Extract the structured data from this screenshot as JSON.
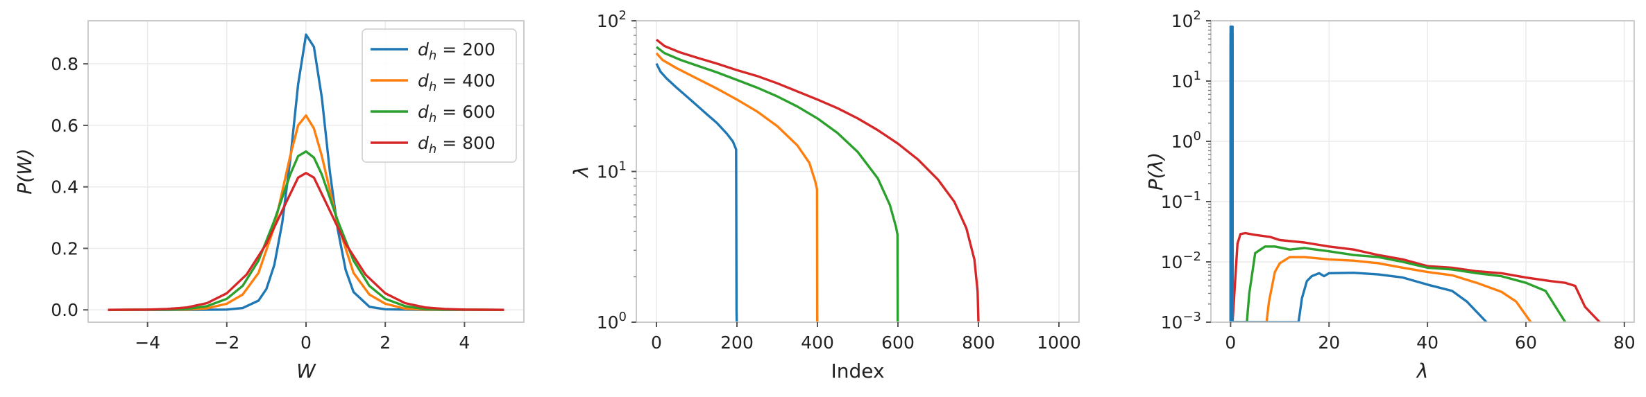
{
  "colors": {
    "d200": "#1f77b4",
    "d400": "#ff7f0e",
    "d600": "#2ca02c",
    "d800": "#d62728"
  },
  "chart_data": [
    {
      "type": "line",
      "xlabel": "W",
      "ylabel": "P(W)",
      "xlim": [
        -5.5,
        5.5
      ],
      "ylim": [
        -0.04,
        0.94
      ],
      "xticks": [
        -4,
        -2,
        0,
        2,
        4
      ],
      "xtick_labels": [
        "−4",
        "−2",
        "0",
        "2",
        "4"
      ],
      "yticks": [
        0.0,
        0.2,
        0.4,
        0.6,
        0.8
      ],
      "ytick_labels": [
        "0.0",
        "0.2",
        "0.4",
        "0.6",
        "0.8"
      ],
      "grid": true,
      "legend": {
        "placement": "top-right",
        "entries": [
          {
            "prefix": "d",
            "sub": "h",
            "suffix": " = 200",
            "color_key": "d200"
          },
          {
            "prefix": "d",
            "sub": "h",
            "suffix": " = 400",
            "color_key": "d400"
          },
          {
            "prefix": "d",
            "sub": "h",
            "suffix": " = 600",
            "color_key": "d600"
          },
          {
            "prefix": "d",
            "sub": "h",
            "suffix": " = 800",
            "color_key": "d800"
          }
        ]
      },
      "series": [
        {
          "color_key": "d200",
          "x": [
            -5,
            -3,
            -2,
            -1.6,
            -1.2,
            -1.0,
            -0.8,
            -0.6,
            -0.4,
            -0.2,
            0,
            0.2,
            0.4,
            0.6,
            0.8,
            1.0,
            1.2,
            1.6,
            2,
            3,
            5
          ],
          "y": [
            0,
            0,
            0.001,
            0.006,
            0.03,
            0.068,
            0.146,
            0.283,
            0.487,
            0.733,
            0.895,
            0.855,
            0.69,
            0.45,
            0.262,
            0.13,
            0.058,
            0.01,
            0.002,
            0,
            0
          ]
        },
        {
          "color_key": "d400",
          "x": [
            -5,
            -3,
            -2.5,
            -2,
            -1.6,
            -1.2,
            -0.8,
            -0.4,
            -0.2,
            0,
            0.2,
            0.4,
            0.8,
            1.2,
            1.6,
            2,
            2.5,
            3,
            5
          ],
          "y": [
            0,
            0.001,
            0.005,
            0.02,
            0.05,
            0.12,
            0.27,
            0.5,
            0.6,
            0.632,
            0.59,
            0.5,
            0.28,
            0.12,
            0.05,
            0.02,
            0.004,
            0.001,
            0
          ]
        },
        {
          "color_key": "d600",
          "x": [
            -5,
            -3.5,
            -3,
            -2.5,
            -2,
            -1.6,
            -1.2,
            -0.8,
            -0.4,
            -0.2,
            0,
            0.2,
            0.4,
            0.8,
            1.2,
            1.6,
            2,
            2.5,
            3,
            3.5,
            5
          ],
          "y": [
            0,
            0.001,
            0.003,
            0.012,
            0.036,
            0.078,
            0.16,
            0.29,
            0.44,
            0.5,
            0.515,
            0.495,
            0.44,
            0.29,
            0.16,
            0.078,
            0.036,
            0.012,
            0.003,
            0.001,
            0
          ]
        },
        {
          "color_key": "d800",
          "x": [
            -5,
            -4,
            -3.5,
            -3,
            -2.5,
            -2,
            -1.5,
            -1,
            -0.5,
            -0.2,
            0,
            0.2,
            0.5,
            1,
            1.5,
            2,
            2.5,
            3,
            3.5,
            4,
            5
          ],
          "y": [
            0,
            0.001,
            0.003,
            0.008,
            0.022,
            0.054,
            0.115,
            0.215,
            0.35,
            0.43,
            0.445,
            0.43,
            0.35,
            0.215,
            0.115,
            0.054,
            0.022,
            0.008,
            0.003,
            0.001,
            0
          ]
        }
      ]
    },
    {
      "type": "line",
      "xlabel": "Index",
      "ylabel": "λ",
      "yscale": "log",
      "xlim": [
        -50,
        1050
      ],
      "ylim": [
        1,
        100
      ],
      "xticks": [
        0,
        200,
        400,
        600,
        800,
        1000
      ],
      "xtick_labels": [
        "0",
        "200",
        "400",
        "600",
        "800",
        "1000"
      ],
      "yticks": [
        1,
        10,
        100
      ],
      "ytick_labels": [
        {
          "base": "10",
          "exp": "0"
        },
        {
          "base": "10",
          "exp": "1"
        },
        {
          "base": "10",
          "exp": "2"
        }
      ],
      "grid": true,
      "series": [
        {
          "color_key": "d200",
          "x": [
            0,
            10,
            25,
            50,
            75,
            100,
            125,
            150,
            175,
            190,
            198,
            199,
            199.5
          ],
          "y": [
            52,
            46,
            41.5,
            36,
            31.5,
            27.5,
            24,
            21,
            17.8,
            15.8,
            14,
            1.2,
            1
          ]
        },
        {
          "color_key": "d400",
          "x": [
            0,
            15,
            50,
            100,
            150,
            200,
            250,
            300,
            350,
            380,
            395,
            399,
            399.5
          ],
          "y": [
            61,
            55,
            48.5,
            41.5,
            35.5,
            30,
            25,
            20,
            14.9,
            11.4,
            8.5,
            7.6,
            1
          ]
        },
        {
          "color_key": "d600",
          "x": [
            0,
            20,
            60,
            100,
            150,
            200,
            250,
            300,
            350,
            400,
            450,
            500,
            550,
            580,
            595,
            599,
            599.5
          ],
          "y": [
            67,
            61,
            55,
            50.5,
            45.5,
            40.5,
            36,
            31.5,
            27,
            22.5,
            18,
            13.5,
            9,
            6,
            4.3,
            3.8,
            1
          ]
        },
        {
          "color_key": "d800",
          "x": [
            0,
            20,
            60,
            100,
            150,
            200,
            250,
            300,
            350,
            400,
            450,
            500,
            550,
            600,
            650,
            700,
            740,
            770,
            790,
            798,
            800
          ],
          "y": [
            75,
            68,
            61.5,
            57,
            52,
            47,
            43,
            38.5,
            34,
            30,
            26.3,
            22.5,
            18.8,
            15.3,
            12,
            8.8,
            6.3,
            4.2,
            2.6,
            1.6,
            1
          ]
        }
      ]
    },
    {
      "type": "line",
      "xlabel": "λ",
      "ylabel": "P(λ)",
      "yscale": "log",
      "xlim": [
        -4,
        82
      ],
      "ylim": [
        0.001,
        100
      ],
      "xticks": [
        0,
        20,
        40,
        60,
        80
      ],
      "xtick_labels": [
        "0",
        "20",
        "40",
        "60",
        "80"
      ],
      "yticks": [
        0.001,
        0.01,
        0.1,
        1,
        10,
        100
      ],
      "ytick_labels": [
        {
          "base": "10",
          "exp": "−3"
        },
        {
          "base": "10",
          "exp": "−2"
        },
        {
          "base": "10",
          "exp": "−1"
        },
        {
          "base": "10",
          "exp": "0"
        },
        {
          "base": "10",
          "exp": "1"
        },
        {
          "base": "10",
          "exp": "2"
        }
      ],
      "grid": true,
      "series": [
        {
          "color_key": "d800",
          "x": [
            0,
            0,
            0.4,
            0.4,
            1.4,
            2,
            3,
            5,
            8,
            10,
            15,
            20,
            25,
            30,
            35,
            40,
            45,
            50,
            55,
            60,
            65,
            68,
            70,
            72,
            75
          ],
          "y": [
            0.001,
            22,
            22,
            0.001,
            0.02,
            0.029,
            0.03,
            0.028,
            0.026,
            0.023,
            0.021,
            0.018,
            0.016,
            0.013,
            0.011,
            0.0085,
            0.008,
            0.007,
            0.0065,
            0.0055,
            0.0048,
            0.0045,
            0.004,
            0.0018,
            0.001
          ]
        },
        {
          "color_key": "d600",
          "x": [
            0,
            0,
            0.4,
            0.4,
            3.3,
            3.8,
            5,
            7,
            9,
            12,
            15,
            20,
            25,
            30,
            35,
            40,
            45,
            50,
            55,
            60,
            64,
            68
          ],
          "y": [
            0.001,
            40,
            40,
            0.001,
            0.001,
            0.003,
            0.014,
            0.018,
            0.018,
            0.016,
            0.017,
            0.015,
            0.013,
            0.012,
            0.01,
            0.008,
            0.0075,
            0.0065,
            0.0058,
            0.0045,
            0.0033,
            0.001
          ]
        },
        {
          "color_key": "d400",
          "x": [
            0,
            0,
            0.4,
            0.4,
            7.3,
            7.8,
            9,
            10,
            12,
            15,
            20,
            25,
            30,
            35,
            40,
            45,
            50,
            55,
            58,
            61
          ],
          "y": [
            0.001,
            60,
            60,
            0.001,
            0.001,
            0.0022,
            0.0068,
            0.0095,
            0.012,
            0.012,
            0.011,
            0.0105,
            0.0095,
            0.008,
            0.0068,
            0.006,
            0.0045,
            0.0032,
            0.0022,
            0.001
          ]
        },
        {
          "color_key": "d200",
          "x": [
            0,
            0,
            0.4,
            0.4,
            13.8,
            14.5,
            15.5,
            16.5,
            18,
            19,
            20,
            25,
            30,
            35,
            40,
            45,
            48,
            52
          ],
          "y": [
            0.001,
            80,
            80,
            0.001,
            0.001,
            0.0025,
            0.0048,
            0.0058,
            0.0065,
            0.0058,
            0.0065,
            0.0066,
            0.0062,
            0.0055,
            0.0042,
            0.0033,
            0.0022,
            0.001
          ]
        }
      ]
    }
  ]
}
